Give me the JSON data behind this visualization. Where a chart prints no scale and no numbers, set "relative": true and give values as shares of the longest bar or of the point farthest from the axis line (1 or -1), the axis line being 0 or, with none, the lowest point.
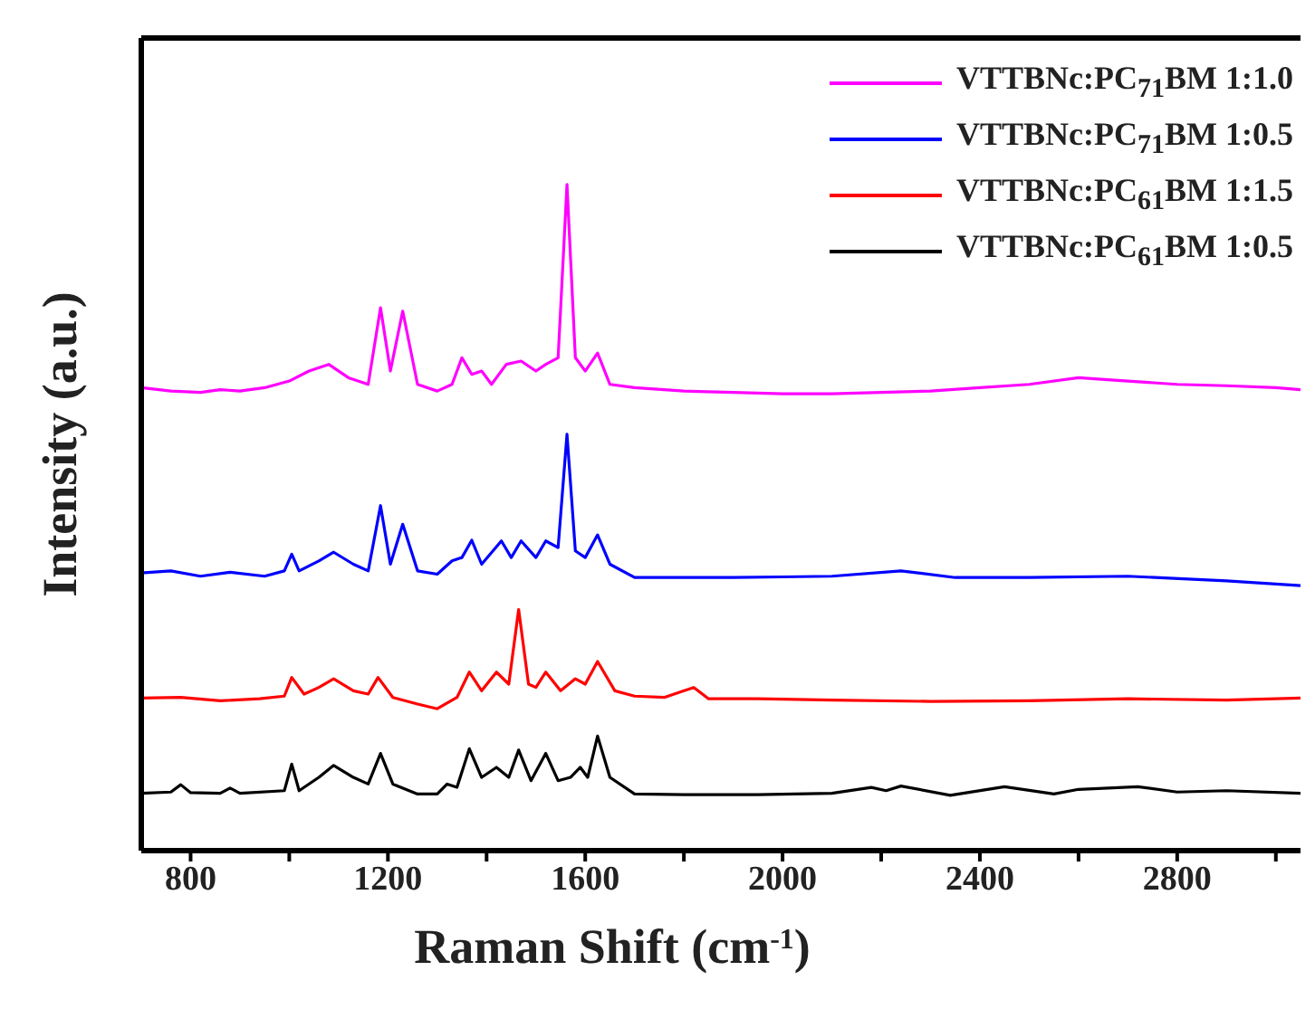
{
  "chart_data": {
    "type": "line",
    "relative": true,
    "xlabel": "Raman Shift (cm$^{-1}$)",
    "ylabel": "Intensity (a.u.)",
    "xlim": [
      700,
      3050
    ],
    "xticks": [
      800,
      {
        "value": 1000,
        "label": null
      },
      1200,
      {
        "value": 1400,
        "label": null
      },
      1600,
      {
        "value": 1800,
        "label": null
      },
      2000,
      {
        "value": 2200,
        "label": null
      },
      2400,
      {
        "value": 2600,
        "label": null
      },
      2800,
      {
        "value": 3000,
        "label": null
      }
    ],
    "legend": "top right",
    "line_style": "solid",
    "marker": "none",
    "series": [
      {
        "name": "VTTBNc:PC$_{71}$BM 1:1.0",
        "color": "#ff00ff",
        "x": [
          700,
          760,
          820,
          860,
          900,
          950,
          1000,
          1040,
          1080,
          1120,
          1160,
          1185,
          1205,
          1230,
          1260,
          1300,
          1330,
          1350,
          1370,
          1390,
          1410,
          1440,
          1470,
          1500,
          1520,
          1545,
          1563,
          1580,
          1600,
          1625,
          1650,
          1700,
          1800,
          1900,
          2000,
          2100,
          2200,
          2300,
          2400,
          2500,
          2600,
          2700,
          2800,
          2900,
          3000,
          3050
        ],
        "values": [
          0.695,
          0.69,
          0.688,
          0.692,
          0.69,
          0.695,
          0.705,
          0.72,
          0.73,
          0.71,
          0.7,
          0.815,
          0.72,
          0.81,
          0.7,
          0.69,
          0.7,
          0.74,
          0.715,
          0.72,
          0.7,
          0.73,
          0.735,
          0.72,
          0.73,
          0.74,
          1.0,
          0.74,
          0.72,
          0.747,
          0.7,
          0.695,
          0.69,
          0.688,
          0.686,
          0.686,
          0.688,
          0.69,
          0.695,
          0.7,
          0.71,
          0.705,
          0.7,
          0.698,
          0.695,
          0.692
        ]
      },
      {
        "name": "VTTBNc:PC$_{71}$BM 1:0.5",
        "color": "#0000ff",
        "x": [
          700,
          760,
          820,
          880,
          950,
          990,
          1005,
          1020,
          1060,
          1090,
          1130,
          1160,
          1185,
          1205,
          1230,
          1260,
          1300,
          1330,
          1350,
          1370,
          1390,
          1430,
          1450,
          1470,
          1500,
          1520,
          1545,
          1563,
          1580,
          1600,
          1625,
          1650,
          1700,
          1800,
          1900,
          2000,
          2100,
          2240,
          2350,
          2500,
          2700,
          2900,
          3050
        ],
        "values": [
          0.417,
          0.42,
          0.412,
          0.418,
          0.412,
          0.42,
          0.445,
          0.42,
          0.435,
          0.448,
          0.43,
          0.42,
          0.518,
          0.43,
          0.49,
          0.42,
          0.415,
          0.435,
          0.44,
          0.466,
          0.43,
          0.465,
          0.44,
          0.465,
          0.44,
          0.465,
          0.455,
          0.625,
          0.45,
          0.44,
          0.474,
          0.43,
          0.41,
          0.41,
          0.41,
          0.411,
          0.412,
          0.42,
          0.41,
          0.41,
          0.412,
          0.405,
          0.398
        ]
      },
      {
        "name": "VTTBNc:PC$_{61}$BM 1:1.5",
        "color": "#ff0000",
        "x": [
          700,
          780,
          860,
          940,
          990,
          1005,
          1030,
          1060,
          1090,
          1130,
          1160,
          1180,
          1210,
          1260,
          1300,
          1340,
          1365,
          1390,
          1420,
          1445,
          1465,
          1485,
          1500,
          1520,
          1550,
          1580,
          1600,
          1625,
          1660,
          1700,
          1760,
          1820,
          1850,
          1950,
          2100,
          2300,
          2500,
          2700,
          2900,
          3050
        ],
        "values": [
          0.229,
          0.23,
          0.225,
          0.228,
          0.232,
          0.26,
          0.235,
          0.245,
          0.258,
          0.24,
          0.235,
          0.26,
          0.23,
          0.22,
          0.213,
          0.23,
          0.268,
          0.24,
          0.268,
          0.25,
          0.362,
          0.25,
          0.245,
          0.268,
          0.24,
          0.258,
          0.25,
          0.284,
          0.24,
          0.232,
          0.23,
          0.245,
          0.228,
          0.228,
          0.226,
          0.224,
          0.225,
          0.228,
          0.226,
          0.229
        ]
      },
      {
        "name": "VTTBNc:PC$_{61}$BM 1:0.5",
        "color": "#000000",
        "x": [
          700,
          760,
          780,
          800,
          860,
          880,
          900,
          990,
          1005,
          1020,
          1060,
          1090,
          1130,
          1160,
          1185,
          1210,
          1260,
          1300,
          1320,
          1340,
          1365,
          1390,
          1420,
          1445,
          1465,
          1490,
          1520,
          1545,
          1570,
          1590,
          1605,
          1625,
          1650,
          1700,
          1800,
          1950,
          2100,
          2180,
          2210,
          2240,
          2340,
          2450,
          2550,
          2600,
          2720,
          2800,
          2900,
          3050
        ],
        "values": [
          0.086,
          0.088,
          0.099,
          0.087,
          0.086,
          0.094,
          0.086,
          0.09,
          0.13,
          0.09,
          0.11,
          0.128,
          0.11,
          0.1,
          0.146,
          0.1,
          0.085,
          0.085,
          0.1,
          0.095,
          0.153,
          0.11,
          0.125,
          0.11,
          0.151,
          0.105,
          0.146,
          0.105,
          0.11,
          0.125,
          0.11,
          0.172,
          0.11,
          0.085,
          0.084,
          0.084,
          0.086,
          0.095,
          0.09,
          0.097,
          0.083,
          0.096,
          0.085,
          0.092,
          0.096,
          0.088,
          0.09,
          0.086
        ]
      }
    ]
  }
}
